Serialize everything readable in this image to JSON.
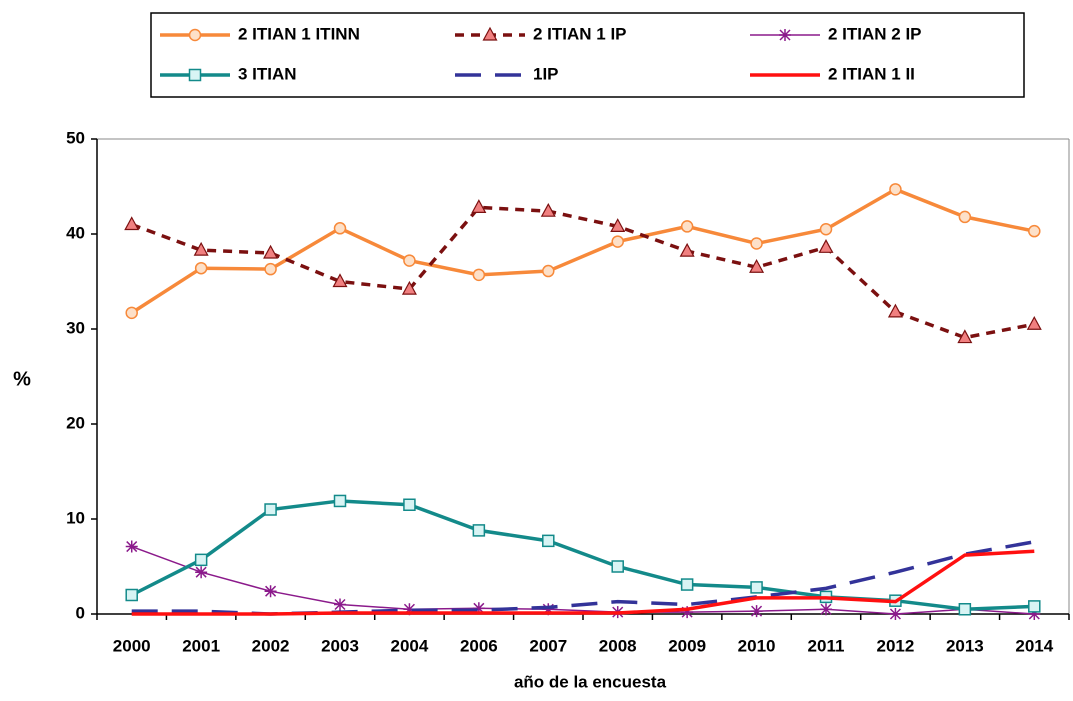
{
  "chart_data": {
    "type": "line",
    "x_label": "año de la encuesta",
    "y_label": "%",
    "categories": [
      "2000",
      "2001",
      "2002",
      "2003",
      "2004",
      "2006",
      "2007",
      "2008",
      "2009",
      "2010",
      "2011",
      "2012",
      "2013",
      "2014"
    ],
    "ylim": [
      0,
      50
    ],
    "yticks": [
      0,
      10,
      20,
      30,
      40,
      50
    ],
    "series": [
      {
        "name": "2 ITIAN 1 ITINN",
        "color": "#f7893a",
        "marker": "circle",
        "dash": "solid",
        "values": [
          31.7,
          36.4,
          36.3,
          40.6,
          37.2,
          35.7,
          36.1,
          39.2,
          40.8,
          39.0,
          40.5,
          44.7,
          41.8,
          40.3
        ]
      },
      {
        "name": "2 ITIAN 1 IP",
        "color": "#7b1010",
        "marker": "triangle",
        "dash": "dotted",
        "values": [
          41.0,
          38.3,
          38.0,
          35.0,
          34.2,
          42.8,
          42.4,
          40.8,
          38.2,
          36.5,
          38.6,
          31.8,
          29.1,
          30.5
        ]
      },
      {
        "name": "2 ITIAN 2 IP",
        "color": "#8b1a8b",
        "marker": "star",
        "dash": "solid",
        "values": [
          7.1,
          4.4,
          2.4,
          1.0,
          0.5,
          0.6,
          0.5,
          0.2,
          0.2,
          0.3,
          0.5,
          0.0,
          0.5,
          0.0
        ]
      },
      {
        "name": "3 ITIAN",
        "color": "#138a8a",
        "marker": "square",
        "dash": "solid",
        "values": [
          2.0,
          5.7,
          11.0,
          11.9,
          11.5,
          8.8,
          7.7,
          5.0,
          3.1,
          2.8,
          1.8,
          1.4,
          0.5,
          0.8
        ]
      },
      {
        "name": "1IP",
        "color": "#333399",
        "marker": "none",
        "dash": "long",
        "values": [
          0.3,
          0.3,
          0.0,
          0.2,
          0.4,
          0.4,
          0.7,
          1.3,
          1.0,
          1.8,
          2.7,
          4.4,
          6.3,
          7.6
        ]
      },
      {
        "name": "2 ITIAN 1 II",
        "color": "#ff1010",
        "marker": "none",
        "dash": "solid",
        "values": [
          0.0,
          0.0,
          0.0,
          0.1,
          0.1,
          0.1,
          0.1,
          0.1,
          0.5,
          1.7,
          1.7,
          1.3,
          6.2,
          6.6
        ]
      }
    ]
  }
}
